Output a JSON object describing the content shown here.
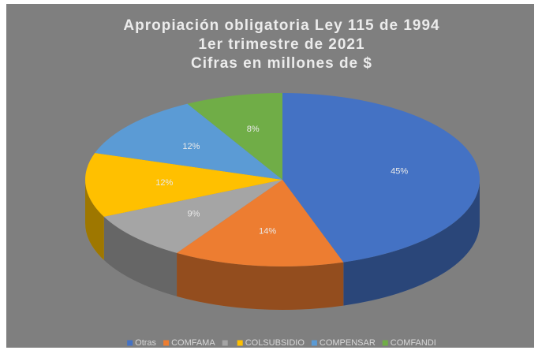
{
  "chart_data": {
    "type": "pie",
    "title": [
      "Apropiación obligatoria Ley 115 de 1994",
      "1er trimestre de 2021",
      "Cifras en millones de $"
    ],
    "categories": [
      "Otras",
      "COMFAMA",
      null,
      "COLSUBSIDIO",
      "COMPENSAR",
      "COMFANDI"
    ],
    "values": [
      45,
      14,
      9,
      12,
      12,
      8
    ],
    "value_labels": [
      "45%",
      "14%",
      "9%",
      "12%",
      "12%",
      "8%"
    ],
    "colors": [
      "#4472c4",
      "#ed7d31",
      "#a5a5a5",
      "#ffc000",
      "#5b9bd5",
      "#70ad47"
    ],
    "legend": "bottom"
  }
}
